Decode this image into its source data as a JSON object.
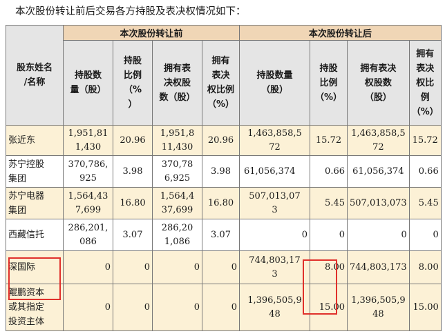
{
  "caption": "本次股份转让前后交易各方持股及表决权情况如下：",
  "headers": {
    "name": "股东姓名/名称",
    "before_group": "本次股份转让前",
    "after_group": "本次股份转让后",
    "shares_before": "持股数量（股）",
    "ratio_before": "持股比例（%）",
    "vote_shares_before": "拥有表决权股数（股）",
    "vote_ratio_before": "拥有表决权比例（%）",
    "shares_after": "持股数量（股）",
    "ratio_after": "持股比例（%）",
    "vote_shares_after": "拥有表决权股数（股）",
    "vote_ratio_after": "拥有表决权比例（%）"
  },
  "rows": [
    {
      "name": "张近东",
      "sb": "1,951,811,430",
      "rb": "20.96",
      "vsb": "1,951,811,430",
      "vrb": "20.96",
      "sa": "1,463,858,572",
      "ra": "15.72",
      "vsa": "1,463,858,572",
      "vra": "15.72"
    },
    {
      "name": "苏宁控股集团",
      "sb": "370,786,925",
      "rb": "3.98",
      "vsb": "370,786,925",
      "vrb": "3.98",
      "sa": "61,056,374",
      "ra": "0.66",
      "vsa": "61,056,374",
      "vra": "0.66"
    },
    {
      "name": "苏宁电器集团",
      "sb": "1,564,437,699",
      "rb": "16.80",
      "vsb": "1,564,437,699",
      "vrb": "16.80",
      "sa": "507,013,073",
      "ra": "5.45",
      "vsa": "507,013,073",
      "vra": "5.45"
    },
    {
      "name": "西藏信托",
      "sb": "286,201,086",
      "rb": "3.07",
      "vsb": "286,201,086",
      "vrb": "3.07",
      "sa": "0",
      "ra": "0",
      "vsa": "0",
      "vra": "0"
    },
    {
      "name": "深国际",
      "sb": "0",
      "rb": "0",
      "vsb": "0",
      "vrb": "0",
      "sa": "744,803,173",
      "ra": "8.00",
      "vsa": "744,803,173",
      "vra": "8.00"
    },
    {
      "name": "鲲鹏资本或其指定投资主体",
      "sb": "0",
      "rb": "0",
      "vsb": "0",
      "vrb": "0",
      "sa": "1,396,505,948",
      "ra": "15.00",
      "vsa": "1,396,505,948",
      "vra": "15.00"
    }
  ]
}
